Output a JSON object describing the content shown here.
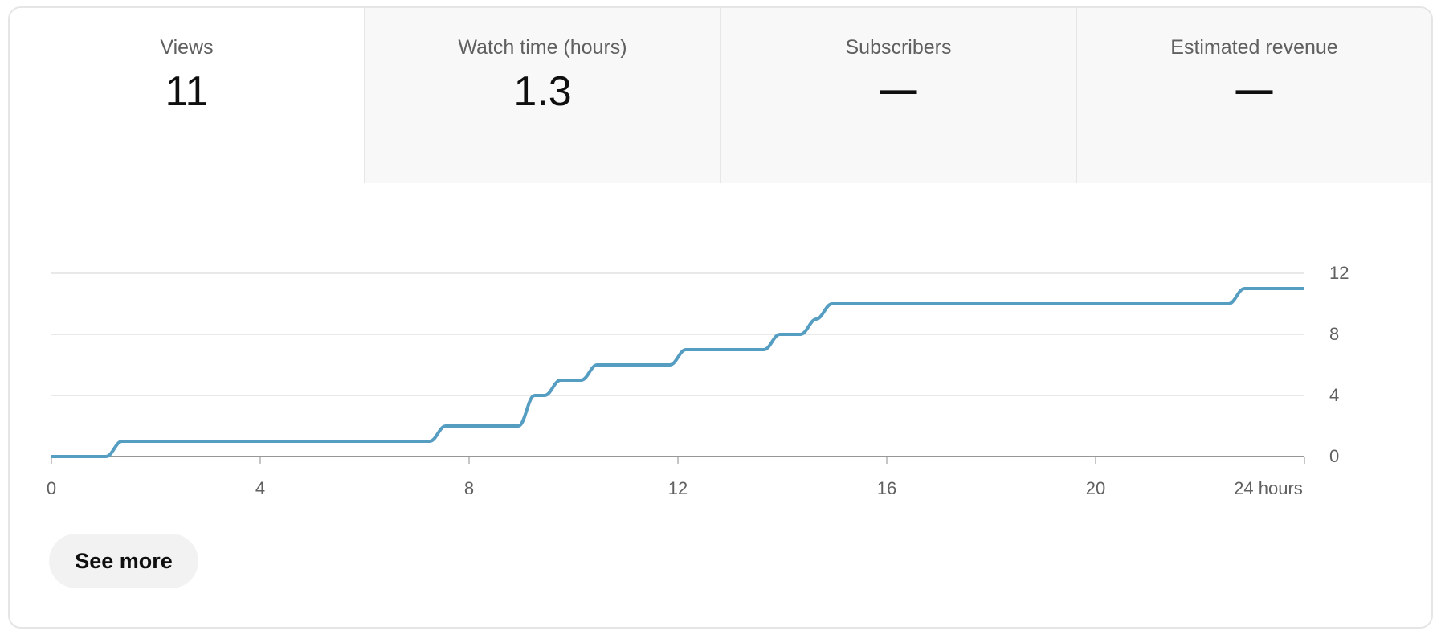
{
  "metrics_tabs": [
    {
      "label": "Views",
      "value": "11",
      "active": true
    },
    {
      "label": "Watch time (hours)",
      "value": "1.3",
      "active": false
    },
    {
      "label": "Subscribers",
      "value": "—",
      "active": false
    },
    {
      "label": "Estimated revenue",
      "value": "—",
      "active": false
    }
  ],
  "see_more_label": "See more",
  "colors": {
    "line": "#569dc2",
    "gridline": "#e9e9e9",
    "baseline": "#979797",
    "tick": "#c6c6c6",
    "axis_text": "#606060",
    "value_text": "#0f0f0f",
    "inactive_tab_bg": "#f8f8f8",
    "pill_bg": "#f2f2f2"
  },
  "chart_data": {
    "type": "line",
    "series_name": "Views",
    "line_style": "smooth-step",
    "x_unit": "hours",
    "x_range": [
      0,
      24
    ],
    "y_range": [
      0,
      12
    ],
    "grid": "horizontal",
    "legend": "none",
    "x_ticks": [
      {
        "value": 0,
        "label": "0"
      },
      {
        "value": 4,
        "label": "4"
      },
      {
        "value": 8,
        "label": "8"
      },
      {
        "value": 12,
        "label": "12"
      },
      {
        "value": 16,
        "label": "16"
      },
      {
        "value": 20,
        "label": "20"
      },
      {
        "value": 24,
        "label": "24 hours"
      }
    ],
    "y_ticks": [
      {
        "value": 0,
        "label": "0"
      },
      {
        "value": 4,
        "label": "4"
      },
      {
        "value": 8,
        "label": "8"
      },
      {
        "value": 12,
        "label": "12"
      }
    ],
    "step_points": [
      [
        0,
        0
      ],
      [
        1.2,
        1
      ],
      [
        7.4,
        2
      ],
      [
        9.1,
        4
      ],
      [
        9.6,
        5
      ],
      [
        10.3,
        6
      ],
      [
        12.0,
        7
      ],
      [
        13.8,
        8
      ],
      [
        14.5,
        9
      ],
      [
        14.8,
        10
      ],
      [
        22.7,
        11
      ],
      [
        24,
        11
      ]
    ]
  }
}
